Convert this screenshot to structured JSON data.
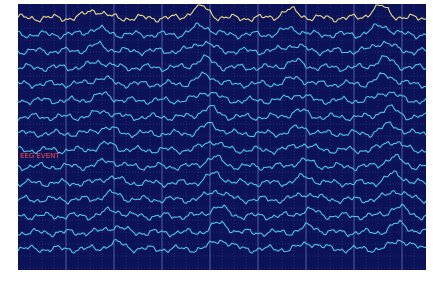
{
  "screen": {
    "event_label": "EEG EVENT"
  }
}
